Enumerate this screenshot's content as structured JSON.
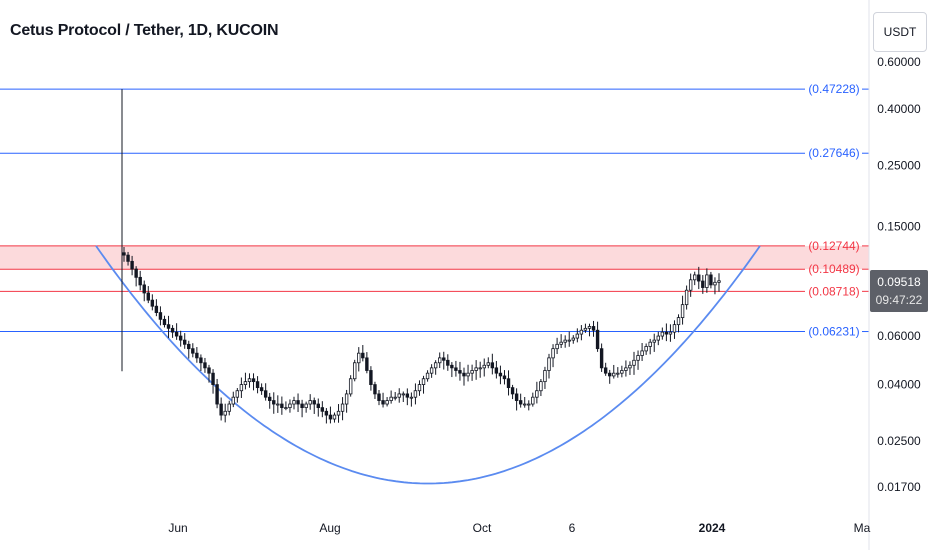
{
  "title": "Cetus Protocol / Tether, 1D, KUCOIN",
  "currency_button": "USDT",
  "last_price": {
    "price": "0.09518",
    "countdown": "09:47:22"
  },
  "colors": {
    "blue_line": "#2962ff",
    "red_line": "#f23645",
    "zone_fill": "#fbd3d6",
    "curve": "#5b8bf0",
    "candle": "#131722",
    "axis_text": "#131722"
  },
  "chart_data": {
    "type": "candlestick",
    "title": "Cetus Protocol / Tether, 1D, KUCOIN",
    "y_scale": "log",
    "y_ticks": [
      "0.60000",
      "0.40000",
      "0.25000",
      "0.15000",
      "0.06000",
      "0.04000",
      "0.02500",
      "0.01700"
    ],
    "x_ticks": [
      "Jun",
      "Aug",
      "Oct",
      "6",
      "2024",
      "Ma"
    ],
    "horizontal_levels": [
      {
        "label": "(0.47228)",
        "value": 0.47228,
        "color": "blue"
      },
      {
        "label": "(0.27646)",
        "value": 0.27646,
        "color": "blue"
      },
      {
        "label": "(0.12744)",
        "value": 0.12744,
        "color": "red"
      },
      {
        "label": "(0.10489)",
        "value": 0.10489,
        "color": "red"
      },
      {
        "label": "(0.08718)",
        "value": 0.08718,
        "color": "red"
      },
      {
        "label": "(0.06231)",
        "value": 0.06231,
        "color": "blue"
      }
    ],
    "resistance_zone": [
      0.10489,
      0.12744
    ],
    "listing_spike": {
      "high": 0.47228,
      "low": 0.0447
    },
    "cup_curve": {
      "left": 0.1274,
      "bottom": 0.0175,
      "right": 0.1274
    },
    "close_path": [
      0.118,
      0.112,
      0.105,
      0.098,
      0.092,
      0.086,
      0.081,
      0.077,
      0.073,
      0.069,
      0.066,
      0.064,
      0.062,
      0.06,
      0.058,
      0.056,
      0.054,
      0.052,
      0.05,
      0.048,
      0.046,
      0.044,
      0.04,
      0.034,
      0.031,
      0.032,
      0.034,
      0.036,
      0.038,
      0.04,
      0.041,
      0.042,
      0.041,
      0.039,
      0.038,
      0.036,
      0.035,
      0.034,
      0.034,
      0.033,
      0.033,
      0.034,
      0.035,
      0.034,
      0.033,
      0.034,
      0.035,
      0.034,
      0.033,
      0.032,
      0.031,
      0.03,
      0.031,
      0.032,
      0.034,
      0.037,
      0.042,
      0.048,
      0.052,
      0.05,
      0.045,
      0.04,
      0.037,
      0.035,
      0.034,
      0.035,
      0.036,
      0.036,
      0.037,
      0.037,
      0.036,
      0.036,
      0.038,
      0.04,
      0.042,
      0.044,
      0.046,
      0.048,
      0.05,
      0.049,
      0.047,
      0.046,
      0.045,
      0.044,
      0.043,
      0.044,
      0.045,
      0.046,
      0.046,
      0.047,
      0.048,
      0.046,
      0.044,
      0.043,
      0.042,
      0.039,
      0.037,
      0.035,
      0.034,
      0.034,
      0.034,
      0.036,
      0.038,
      0.041,
      0.045,
      0.05,
      0.054,
      0.056,
      0.057,
      0.058,
      0.058,
      0.059,
      0.061,
      0.063,
      0.064,
      0.065,
      0.063,
      0.054,
      0.046,
      0.044,
      0.043,
      0.044,
      0.044,
      0.045,
      0.046,
      0.047,
      0.049,
      0.051,
      0.053,
      0.055,
      0.057,
      0.058,
      0.06,
      0.062,
      0.061,
      0.062,
      0.066,
      0.07,
      0.078,
      0.088,
      0.096,
      0.1,
      0.095,
      0.09,
      0.1,
      0.092,
      0.094,
      0.0952
    ]
  }
}
